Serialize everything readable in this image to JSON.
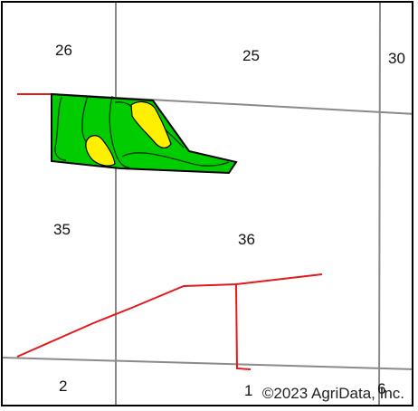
{
  "section_labels": {
    "s26": "26",
    "s25": "25",
    "s30": "30",
    "s35": "35",
    "s36": "36",
    "s2": "2",
    "s1": "1",
    "s6": "6"
  },
  "copyright": "©2023 AgriData, Inc.",
  "colors": {
    "section_line": "#8a8a8a",
    "road": "#e3191c",
    "field_green": "#00cc00",
    "soil_yellow": "#ffef00",
    "outline": "#000000"
  }
}
